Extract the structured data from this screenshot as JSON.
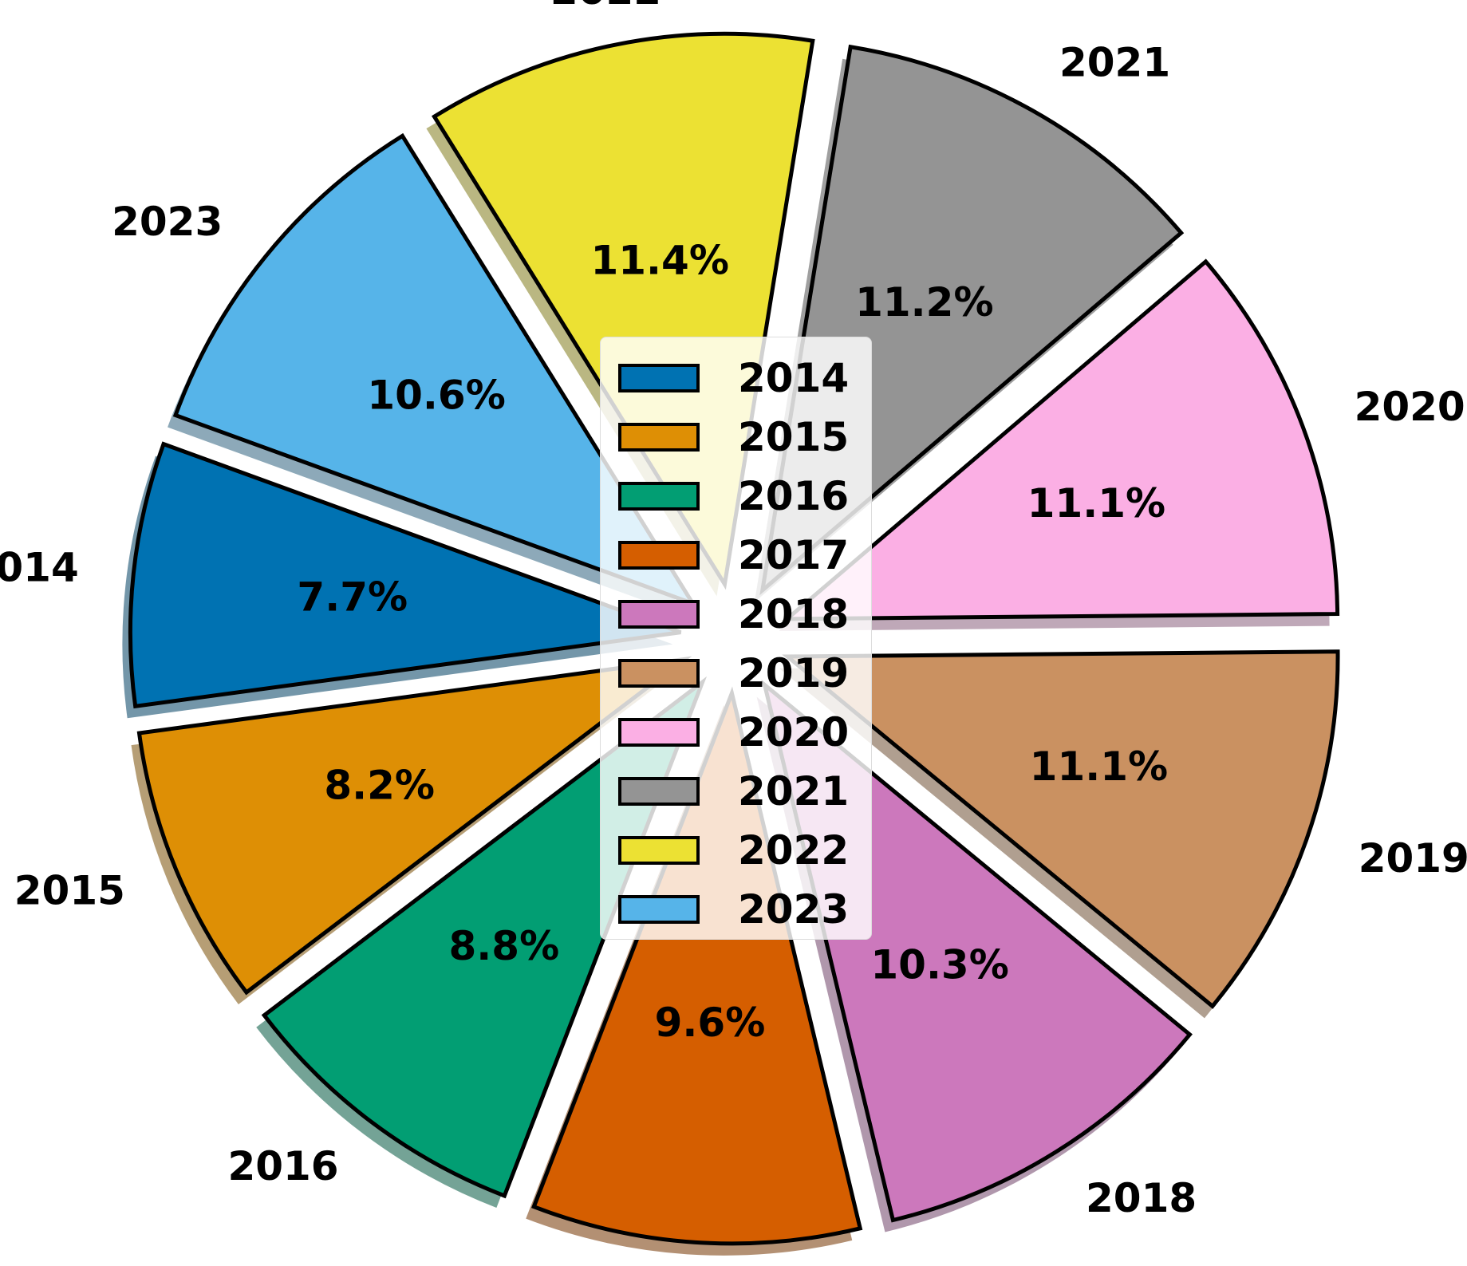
{
  "chart_data": {
    "type": "pie",
    "categories": [
      "2014",
      "2015",
      "2016",
      "2017",
      "2018",
      "2019",
      "2020",
      "2021",
      "2022",
      "2023"
    ],
    "values": [
      7.7,
      8.2,
      8.8,
      9.6,
      10.3,
      11.1,
      11.1,
      11.2,
      11.4,
      10.6
    ],
    "value_labels": [
      "7.7%",
      "8.2%",
      "8.8%",
      "9.6%",
      "10.3%",
      "11.1%",
      "11.1%",
      "11.2%",
      "11.4%",
      "10.6%"
    ],
    "colors": [
      "#0072b2",
      "#de8f05",
      "#029e73",
      "#d55e00",
      "#cc78bc",
      "#ca9161",
      "#fbafe4",
      "#949494",
      "#ece133",
      "#56b4e9"
    ],
    "exploded": true,
    "shadow": true,
    "start_angle_deg": 160,
    "direction": "counterclockwise",
    "legend": {
      "placement": "center",
      "entries": [
        "2014",
        "2015",
        "2016",
        "2017",
        "2018",
        "2019",
        "2020",
        "2021",
        "2022",
        "2023"
      ]
    }
  }
}
